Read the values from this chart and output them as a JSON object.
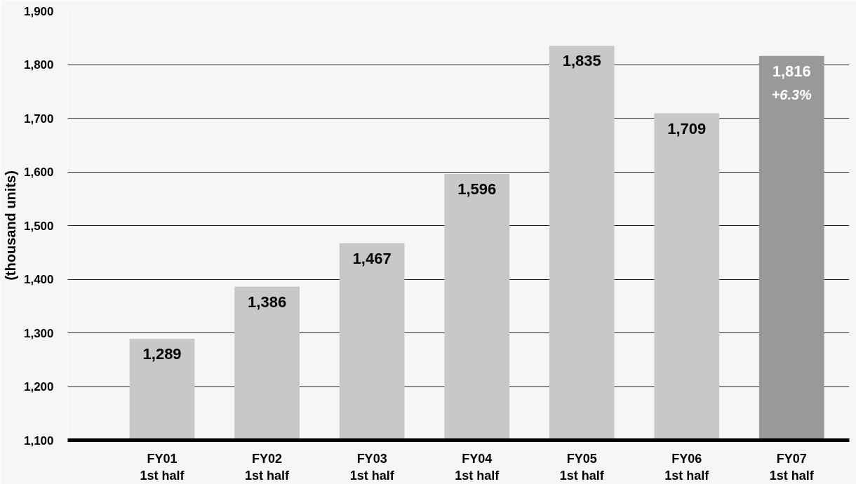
{
  "chart_data": {
    "type": "bar",
    "ylabel": "(thousand units)",
    "categories": [
      "FY01\n1st half",
      "FY02\n1st half",
      "FY03\n1st half",
      "FY04\n1st half",
      "FY05\n1st half",
      "FY06\n1st half",
      "FY07\n1st half"
    ],
    "values": [
      1289,
      1386,
      1467,
      1596,
      1835,
      1709,
      1816
    ],
    "colors": [
      "#c8c8c8",
      "#c8c8c8",
      "#c8c8c8",
      "#c8c8c8",
      "#c8c8c8",
      "#c8c8c8",
      "#999999"
    ],
    "value_labels": [
      "1,289",
      "1,386",
      "1,467",
      "1,596",
      "1,835",
      "1,709",
      "1,816"
    ],
    "annotations": [
      {
        "text": "+6.3%",
        "x": "FY07\n1st half",
        "y": 1816
      }
    ],
    "ylim": [
      1100,
      1900
    ],
    "yticks": [
      {
        "value": 1100,
        "label": "1,100"
      },
      {
        "value": 1200,
        "label": "1,200"
      },
      {
        "value": 1300,
        "label": "1,300"
      },
      {
        "value": 1400,
        "label": "1,400"
      },
      {
        "value": 1500,
        "label": "1,500"
      },
      {
        "value": 1600,
        "label": "1,600"
      },
      {
        "value": 1700,
        "label": "1,700"
      },
      {
        "value": 1800,
        "label": "1,800"
      },
      {
        "value": 1900,
        "label": "1,900"
      }
    ],
    "grid": "y"
  }
}
